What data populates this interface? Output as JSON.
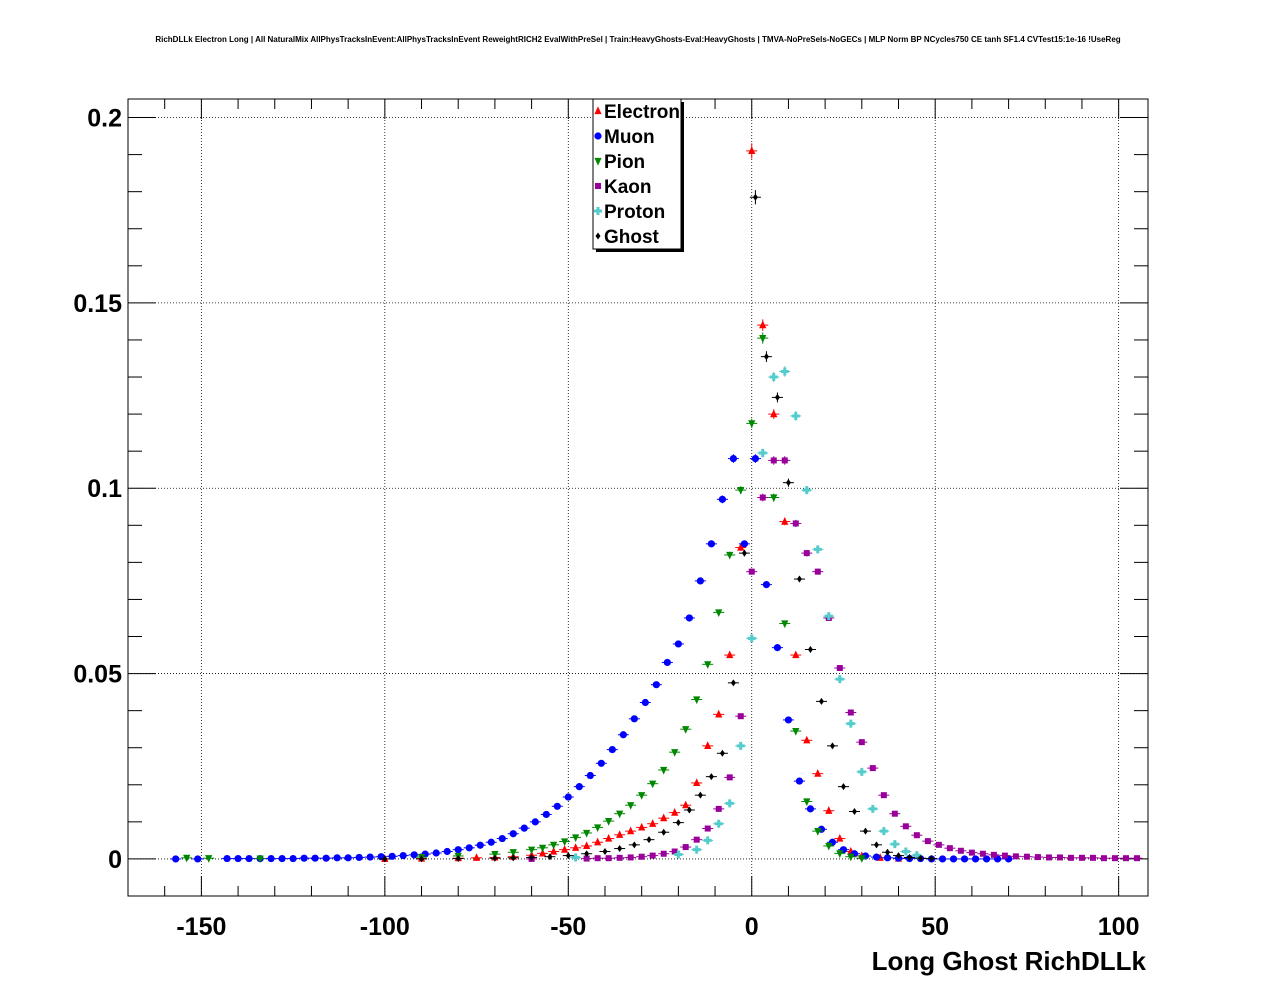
{
  "chart_data": {
    "type": "scatter",
    "title": "RichDLLk Electron Long | All NaturalMix AllPhysTracksInEvent:AllPhysTracksInEvent ReweightRICH2 EvalWithPreSel | Train:HeavyGhosts-Eval:HeavyGhosts | TMVA-NoPreSels-NoGECs | MLP Norm BP NCycles750 CE tanh SF1.4 CVTest15:1e-16 !UseReg",
    "xlabel": "Long Ghost RichDLLk",
    "ylabel": "",
    "xlim": [
      -170,
      108
    ],
    "ylim": [
      -0.01,
      0.205
    ],
    "x_ticks": [
      -150,
      -100,
      -50,
      0,
      50,
      100
    ],
    "x_tick_labels": [
      "-150",
      "-100",
      "-50",
      "0",
      "50",
      "100"
    ],
    "y_ticks": [
      0,
      0.05,
      0.1,
      0.15,
      0.2
    ],
    "y_tick_labels": [
      "0",
      "0.05",
      "0.1",
      "0.15",
      "0.2"
    ],
    "grid": true,
    "legend_position": "top-center",
    "series": [
      {
        "name": "Electron",
        "color": "#ff0000",
        "marker": "triangle-up",
        "x": [
          -100,
          -90,
          -80,
          -75,
          -70,
          -65,
          -60,
          -57,
          -54,
          -51,
          -48,
          -45,
          -42,
          -39,
          -36,
          -33,
          -30,
          -27,
          -24,
          -21,
          -18,
          -15,
          -12,
          -9,
          -6,
          -3,
          0,
          3,
          6,
          9,
          12,
          15,
          18,
          21,
          24,
          27,
          30,
          35,
          40
        ],
        "y": [
          0,
          0.0001,
          0.0002,
          0.0003,
          0.0004,
          0.0006,
          0.001,
          0.0015,
          0.002,
          0.0025,
          0.003,
          0.0035,
          0.0045,
          0.0055,
          0.0065,
          0.0075,
          0.0085,
          0.0095,
          0.011,
          0.0125,
          0.0145,
          0.0205,
          0.0305,
          0.039,
          0.055,
          0.084,
          0.191,
          0.144,
          0.12,
          0.091,
          0.055,
          0.032,
          0.023,
          0.013,
          0.0055,
          0.002,
          0.0008,
          0.0003,
          0.0001
        ]
      },
      {
        "name": "Muon",
        "color": "#0000ff",
        "marker": "circle",
        "x": [
          -157,
          -151,
          -143,
          -140,
          -137,
          -134,
          -131,
          -128,
          -125,
          -122,
          -119,
          -116,
          -113,
          -110,
          -107,
          -104,
          -101,
          -98,
          -95,
          -92,
          -89,
          -86,
          -83,
          -80,
          -77,
          -74,
          -71,
          -68,
          -65,
          -62,
          -59,
          -56,
          -53,
          -50,
          -47,
          -44,
          -41,
          -38,
          -35,
          -32,
          -29,
          -26,
          -23,
          -20,
          -17,
          -14,
          -11,
          -8,
          -5,
          -2,
          1,
          4,
          7,
          10,
          13,
          16,
          19,
          22,
          25,
          28,
          31,
          34,
          37,
          40,
          43,
          46,
          49,
          52,
          55,
          58,
          61,
          64,
          67,
          70
        ],
        "y": [
          0,
          0,
          0.0001,
          0.0001,
          0.0001,
          0.0001,
          0.0001,
          0.0001,
          0.0001,
          0.0002,
          0.0002,
          0.0002,
          0.0003,
          0.0003,
          0.0004,
          0.0005,
          0.0006,
          0.0007,
          0.0009,
          0.0011,
          0.0013,
          0.0016,
          0.002,
          0.0025,
          0.003,
          0.0037,
          0.0045,
          0.0055,
          0.0068,
          0.0083,
          0.01,
          0.012,
          0.0142,
          0.0167,
          0.0195,
          0.0225,
          0.0258,
          0.0295,
          0.0335,
          0.0378,
          0.0422,
          0.047,
          0.053,
          0.058,
          0.065,
          0.075,
          0.085,
          0.097,
          0.108,
          0.085,
          0.108,
          0.074,
          0.057,
          0.0375,
          0.021,
          0.0135,
          0.008,
          0.0045,
          0.0025,
          0.0014,
          0.0008,
          0.0005,
          0.0003,
          0.0002,
          0.0001,
          0.0001,
          0,
          0,
          0,
          0,
          0,
          0,
          0,
          0
        ]
      },
      {
        "name": "Pion",
        "color": "#008800",
        "marker": "triangle-down",
        "x": [
          -154,
          -148,
          -134,
          -90,
          -80,
          -70,
          -65,
          -60,
          -57,
          -54,
          -51,
          -48,
          -45,
          -42,
          -39,
          -36,
          -33,
          -30,
          -27,
          -24,
          -21,
          -18,
          -15,
          -12,
          -9,
          -6,
          -3,
          0,
          3,
          6,
          9,
          12,
          15,
          18,
          21,
          24,
          27,
          30
        ],
        "y": [
          0.0003,
          0.0002,
          0.0001,
          0.0005,
          0.0008,
          0.0013,
          0.0018,
          0.0025,
          0.003,
          0.0038,
          0.0047,
          0.0058,
          0.007,
          0.0085,
          0.0102,
          0.0122,
          0.0145,
          0.0172,
          0.0203,
          0.024,
          0.0288,
          0.035,
          0.043,
          0.0525,
          0.0665,
          0.082,
          0.0995,
          0.1175,
          0.1405,
          0.0975,
          0.0635,
          0.0345,
          0.0155,
          0.0075,
          0.0035,
          0.0015,
          0.0006,
          0.0002
        ]
      },
      {
        "name": "Kaon",
        "color": "#990099",
        "marker": "square",
        "x": [
          -60,
          -45,
          -42,
          -39,
          -36,
          -33,
          -30,
          -27,
          -24,
          -21,
          -18,
          -15,
          -12,
          -9,
          -6,
          -3,
          0,
          3,
          6,
          9,
          12,
          15,
          18,
          21,
          24,
          27,
          30,
          33,
          36,
          39,
          42,
          45,
          48,
          51,
          54,
          57,
          60,
          63,
          66,
          69,
          72,
          75,
          78,
          81,
          84,
          87,
          90,
          93,
          96,
          99,
          102,
          105
        ],
        "y": [
          0,
          0.0001,
          0.0002,
          0.0002,
          0.0003,
          0.0004,
          0.0006,
          0.0009,
          0.0014,
          0.002,
          0.0032,
          0.0052,
          0.0082,
          0.0135,
          0.022,
          0.0385,
          0.0775,
          0.0975,
          0.1075,
          0.1075,
          0.0905,
          0.0825,
          0.0775,
          0.065,
          0.0515,
          0.0395,
          0.0315,
          0.0245,
          0.0172,
          0.0122,
          0.0088,
          0.0064,
          0.0048,
          0.0038,
          0.0029,
          0.0022,
          0.0017,
          0.0014,
          0.0011,
          0.0009,
          0.0007,
          0.0006,
          0.0005,
          0.0004,
          0.0004,
          0.0003,
          0.0003,
          0.0003,
          0.0002,
          0.0002,
          0.0002,
          0.0002
        ]
      },
      {
        "name": "Proton",
        "color": "#55cccc",
        "marker": "cross",
        "x": [
          -48,
          -20,
          -15,
          -12,
          -9,
          -6,
          -3,
          0,
          3,
          6,
          9,
          12,
          15,
          18,
          21,
          24,
          27,
          30,
          33,
          36,
          39,
          42,
          45
        ],
        "y": [
          0.0004,
          0.0012,
          0.0025,
          0.005,
          0.0095,
          0.015,
          0.0305,
          0.0595,
          0.1095,
          0.13,
          0.1315,
          0.1195,
          0.0995,
          0.0835,
          0.0655,
          0.0485,
          0.0365,
          0.0235,
          0.0135,
          0.0075,
          0.004,
          0.002,
          0.001
        ]
      },
      {
        "name": "Ghost",
        "color": "#000000",
        "marker": "diamond",
        "x": [
          -100,
          -90,
          -80,
          -70,
          -65,
          -60,
          -55,
          -50,
          -45,
          -40,
          -36,
          -32,
          -28,
          -24,
          -20,
          -17,
          -14,
          -11,
          -8,
          -5,
          -2,
          1,
          4,
          7,
          10,
          13,
          16,
          19,
          22,
          25,
          28,
          31,
          34,
          37,
          40,
          43,
          46,
          49
        ],
        "y": [
          0,
          0,
          0.0001,
          0.0002,
          0.0003,
          0.0004,
          0.0006,
          0.0009,
          0.0014,
          0.002,
          0.0028,
          0.0038,
          0.0052,
          0.0072,
          0.0098,
          0.0132,
          0.0172,
          0.0222,
          0.0285,
          0.0475,
          0.0825,
          0.1785,
          0.1355,
          0.1245,
          0.1015,
          0.0755,
          0.0565,
          0.0425,
          0.0305,
          0.0195,
          0.0128,
          0.0075,
          0.0038,
          0.0018,
          0.0009,
          0.0004,
          0.0002,
          0.0001
        ]
      }
    ]
  }
}
